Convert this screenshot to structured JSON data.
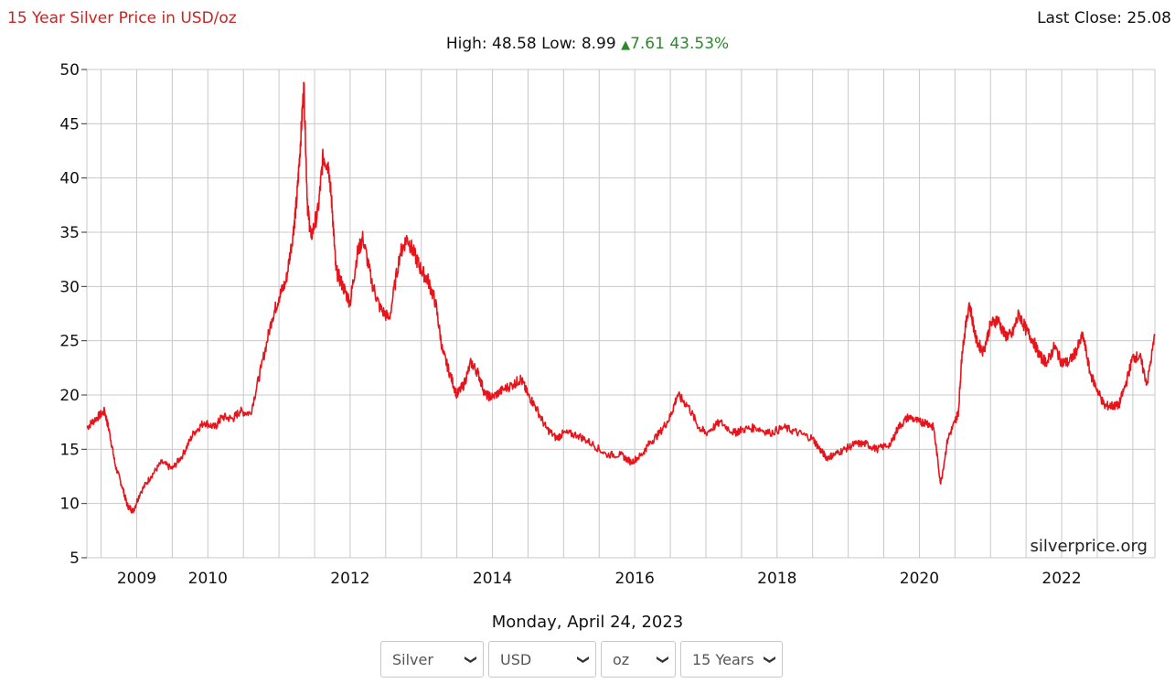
{
  "header": {
    "title": "15 Year Silver Price in USD/oz",
    "last_close": "Last Close: 25.08"
  },
  "stats": {
    "high_label": "High:",
    "high": "48.58",
    "low_label": "Low:",
    "low": "8.99",
    "change": "7.61",
    "change_pct": "43.53%"
  },
  "watermark": "silverprice.org",
  "date": "Monday, April 24, 2023",
  "controls": {
    "metal": "Silver",
    "currency": "USD",
    "unit": "oz",
    "range": "15 Years"
  },
  "colors": {
    "line": "#e8141b",
    "title": "#cc2222",
    "change": "#2a8a2a",
    "grid": "#c8c8c8"
  },
  "chart_data": {
    "type": "line",
    "title": "15 Year Silver Price in USD/oz",
    "xlabel": "",
    "ylabel": "",
    "ylim": [
      5,
      50
    ],
    "xlim": [
      2008.3,
      2023.31
    ],
    "yticks": [
      5,
      10,
      15,
      20,
      25,
      30,
      35,
      40,
      45,
      50
    ],
    "xticks": [
      2009,
      2010,
      2012,
      2014,
      2016,
      2018,
      2020,
      2022
    ],
    "grid": true,
    "legend": "none",
    "series": [
      {
        "x": [
          2008.3,
          2008.42,
          2008.55,
          2008.62,
          2008.7,
          2008.8,
          2008.87,
          2008.95,
          2009.05,
          2009.2,
          2009.35,
          2009.5,
          2009.65,
          2009.8,
          2009.95,
          2010.1,
          2010.2,
          2010.35,
          2010.45,
          2010.6,
          2010.75,
          2010.9,
          2011.0,
          2011.1,
          2011.2,
          2011.25,
          2011.3,
          2011.35,
          2011.4,
          2011.45,
          2011.55,
          2011.62,
          2011.7,
          2011.75,
          2011.8,
          2011.9,
          2012.0,
          2012.1,
          2012.18,
          2012.3,
          2012.42,
          2012.55,
          2012.7,
          2012.8,
          2012.9,
          2013.0,
          2013.1,
          2013.2,
          2013.3,
          2013.4,
          2013.5,
          2013.6,
          2013.7,
          2013.8,
          2013.9,
          2014.0,
          2014.15,
          2014.3,
          2014.4,
          2014.5,
          2014.6,
          2014.75,
          2014.9,
          2015.0,
          2015.2,
          2015.4,
          2015.6,
          2015.8,
          2015.95,
          2016.1,
          2016.2,
          2016.35,
          2016.5,
          2016.6,
          2016.75,
          2016.9,
          2017.0,
          2017.2,
          2017.4,
          2017.5,
          2017.7,
          2017.9,
          2018.1,
          2018.3,
          2018.5,
          2018.6,
          2018.7,
          2018.8,
          2018.95,
          2019.1,
          2019.25,
          2019.4,
          2019.6,
          2019.7,
          2019.85,
          2020.0,
          2020.1,
          2020.2,
          2020.3,
          2020.4,
          2020.5,
          2020.55,
          2020.6,
          2020.7,
          2020.8,
          2020.9,
          2021.0,
          2021.1,
          2021.2,
          2021.3,
          2021.4,
          2021.5,
          2021.6,
          2021.7,
          2021.8,
          2021.9,
          2022.0,
          2022.1,
          2022.2,
          2022.3,
          2022.4,
          2022.5,
          2022.6,
          2022.7,
          2022.8,
          2022.9,
          2023.0,
          2023.1,
          2023.2,
          2023.31
        ],
        "y": [
          17.0,
          17.8,
          18.5,
          16.5,
          13.5,
          11.5,
          9.8,
          9.3,
          11.0,
          12.5,
          13.8,
          13.2,
          14.5,
          16.5,
          17.5,
          17.0,
          18.0,
          17.8,
          18.5,
          18.3,
          22.5,
          27.0,
          29.0,
          30.5,
          35.0,
          38.0,
          43.0,
          48.58,
          37.5,
          34.5,
          37.0,
          42.0,
          41.0,
          37.0,
          31.5,
          30.0,
          28.5,
          33.0,
          34.5,
          30.5,
          28.0,
          27.0,
          33.0,
          34.5,
          33.0,
          31.5,
          30.5,
          28.5,
          24.0,
          22.0,
          20.0,
          21.0,
          23.0,
          22.0,
          20.0,
          19.8,
          20.5,
          21.0,
          21.5,
          20.0,
          19.0,
          17.0,
          16.0,
          16.5,
          16.3,
          15.5,
          14.5,
          14.5,
          13.8,
          14.5,
          15.5,
          16.5,
          18.0,
          20.0,
          19.0,
          17.0,
          16.5,
          17.5,
          16.5,
          16.8,
          17.0,
          16.5,
          17.0,
          16.5,
          16.0,
          15.0,
          14.2,
          14.5,
          15.0,
          15.5,
          15.5,
          15.0,
          15.5,
          17.0,
          18.0,
          17.5,
          17.5,
          17.0,
          11.8,
          16.0,
          17.5,
          18.5,
          24.0,
          28.5,
          25.0,
          24.0,
          26.5,
          27.0,
          25.5,
          25.5,
          27.5,
          26.0,
          25.0,
          23.5,
          23.0,
          24.5,
          23.0,
          23.0,
          24.0,
          25.5,
          22.0,
          20.5,
          19.0,
          19.0,
          19.0,
          21.0,
          23.5,
          23.5,
          21.0,
          25.5
        ]
      }
    ]
  }
}
